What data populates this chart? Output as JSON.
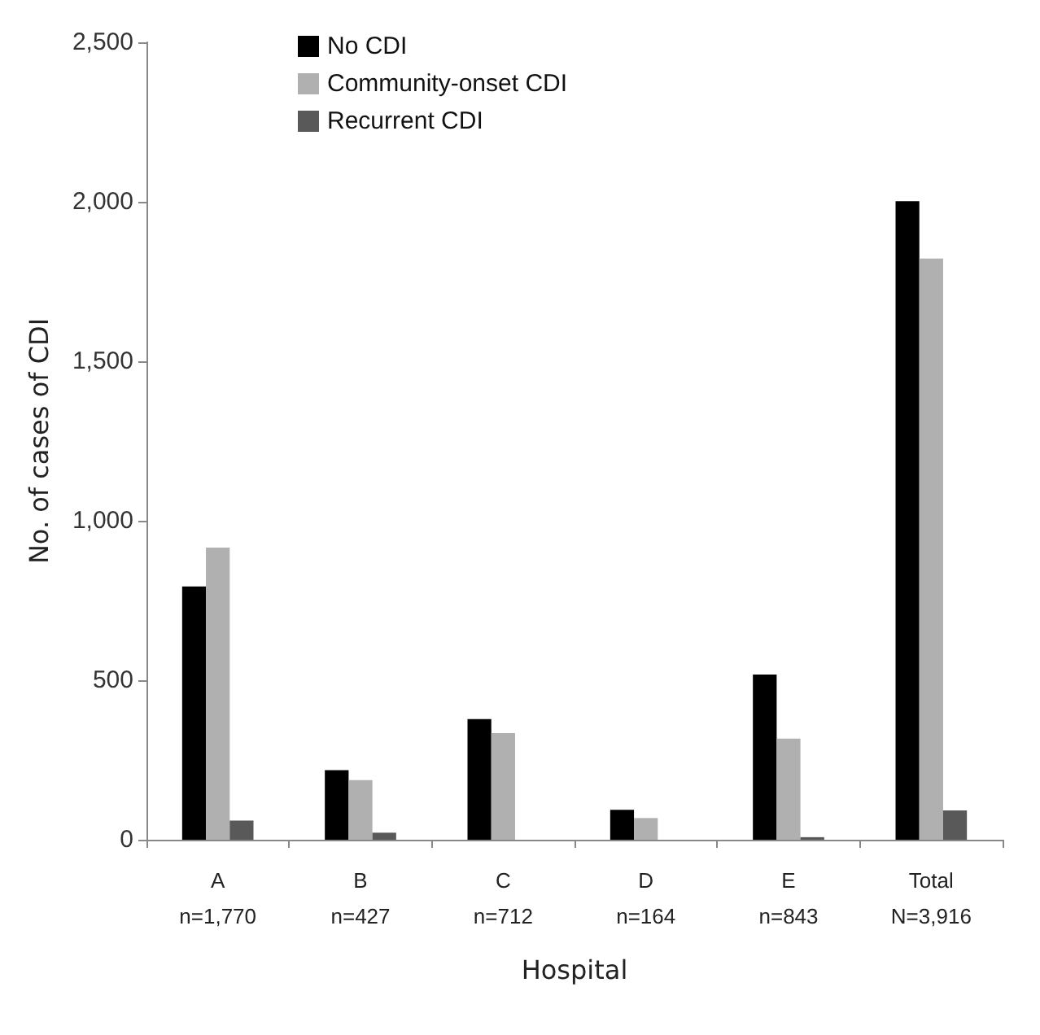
{
  "chart_data": {
    "type": "bar",
    "xlabel": "Hospital",
    "ylabel": "No. of cases of CDI",
    "categories": [
      "A\nn=1,770",
      "B\nn=427",
      "C\nn=712",
      "D\nn=164",
      "E\nn=843",
      "Total\nN=3,916"
    ],
    "series": [
      {
        "name": "No CDI",
        "color": "#000000",
        "values": [
          794,
          218,
          378,
          94,
          518,
          2002
        ]
      },
      {
        "name": "Community-onset CDI",
        "color": "#b0b0b0",
        "values": [
          916,
          187,
          334,
          68,
          317,
          1822
        ]
      },
      {
        "name": "Recurrent CDI",
        "color": "#595959",
        "values": [
          60,
          22,
          0,
          null,
          8,
          92
        ]
      }
    ],
    "ylim": [
      0,
      2500
    ],
    "yticks": [
      {
        "value": 0,
        "label": "0"
      },
      {
        "value": 500,
        "label": "500"
      },
      {
        "value": 1000,
        "label": "1,000"
      },
      {
        "value": 1500,
        "label": "1,500"
      },
      {
        "value": 2000,
        "label": "2,000"
      },
      {
        "value": 2500,
        "label": "2,500"
      }
    ],
    "grid": false,
    "legend": "top left"
  }
}
